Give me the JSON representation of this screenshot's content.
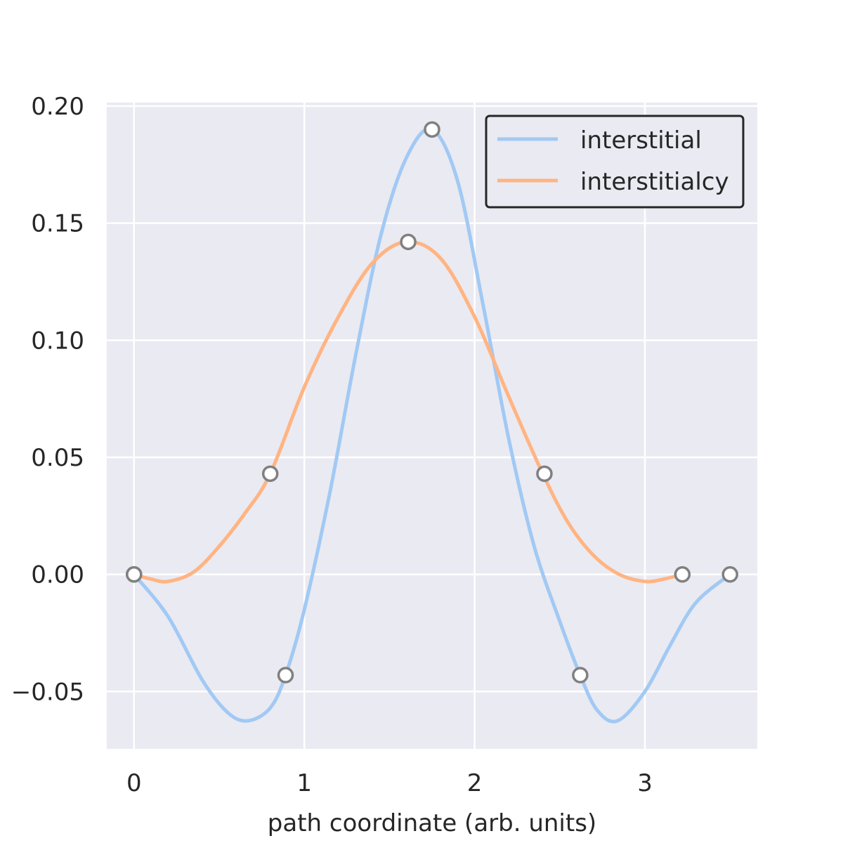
{
  "chart_data": {
    "type": "line",
    "title": "",
    "xlabel": "path coordinate (arb. units)",
    "ylabel": "",
    "xlim": [
      -0.16,
      3.66
    ],
    "ylim": [
      -0.0745,
      0.2015
    ],
    "xticks": [
      0,
      1,
      2,
      3
    ],
    "xtick_labels": [
      "0",
      "1",
      "2",
      "3"
    ],
    "yticks": [
      -0.05,
      0.0,
      0.05,
      0.1,
      0.15,
      0.2
    ],
    "ytick_labels": [
      "−0.05",
      "0.00",
      "0.05",
      "0.10",
      "0.15",
      "0.20"
    ],
    "grid": true,
    "legend_position": "top-right",
    "series": [
      {
        "name": "interstitial",
        "color": "#a1c9f4",
        "curve_x": [
          0,
          0.2,
          0.4,
          0.55,
          0.67,
          0.8,
          0.89,
          1.0,
          1.15,
          1.3,
          1.45,
          1.6,
          1.75,
          1.9,
          2.05,
          2.2,
          2.35,
          2.5,
          2.62,
          2.72,
          2.84,
          3.0,
          3.15,
          3.3,
          3.5
        ],
        "curve_y": [
          0,
          -0.018,
          -0.045,
          -0.059,
          -0.0625,
          -0.057,
          -0.043,
          -0.015,
          0.035,
          0.093,
          0.145,
          0.178,
          0.19,
          0.168,
          0.115,
          0.058,
          0.012,
          -0.02,
          -0.043,
          -0.058,
          -0.0625,
          -0.05,
          -0.03,
          -0.012,
          0
        ],
        "points_x": [
          0,
          0.89,
          1.75,
          2.62,
          3.5
        ],
        "points_y": [
          0,
          -0.043,
          0.19,
          -0.043,
          0
        ]
      },
      {
        "name": "interstitialcy",
        "color": "#ffb482",
        "curve_x": [
          0,
          0.1,
          0.2,
          0.35,
          0.5,
          0.65,
          0.8,
          1.0,
          1.2,
          1.4,
          1.6,
          1.8,
          2.0,
          2.2,
          2.4,
          2.55,
          2.7,
          2.85,
          3.0,
          3.11,
          3.22
        ],
        "curve_y": [
          0,
          -0.002,
          -0.003,
          0.001,
          0.012,
          0.026,
          0.043,
          0.08,
          0.11,
          0.133,
          0.142,
          0.135,
          0.11,
          0.076,
          0.043,
          0.022,
          0.008,
          0.0,
          -0.003,
          -0.002,
          0
        ],
        "points_x": [
          0,
          0.8,
          1.61,
          2.41,
          3.22
        ],
        "points_y": [
          0,
          0.043,
          0.142,
          0.043,
          0
        ]
      }
    ]
  }
}
